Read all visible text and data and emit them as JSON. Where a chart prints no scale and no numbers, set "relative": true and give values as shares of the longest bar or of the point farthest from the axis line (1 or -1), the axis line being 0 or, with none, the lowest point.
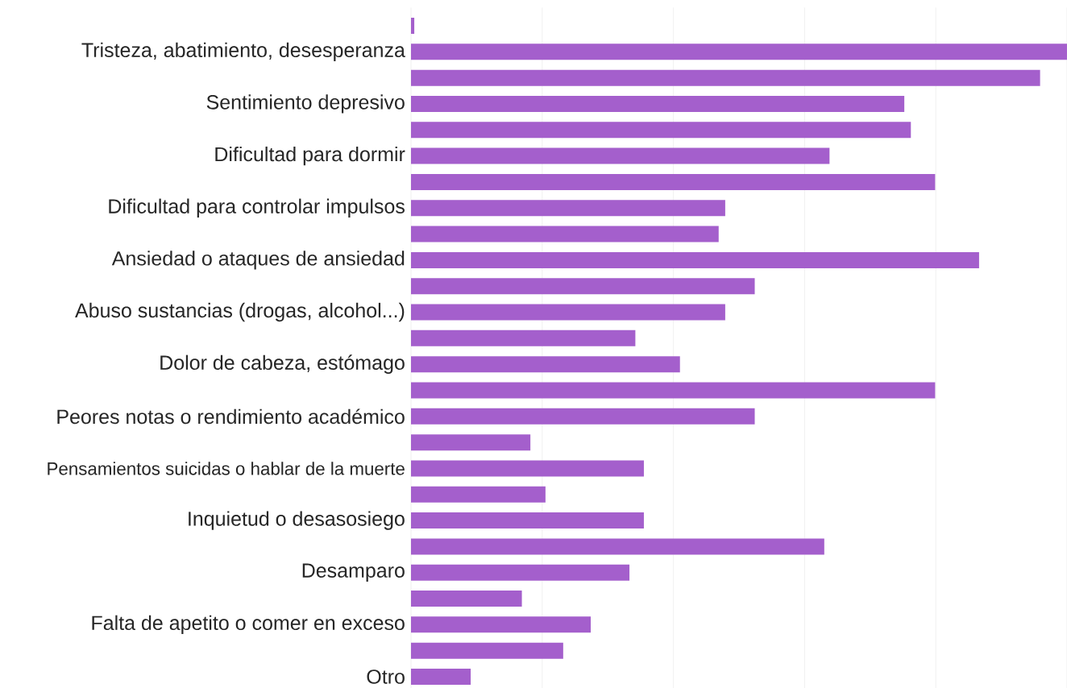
{
  "chart_data": {
    "type": "bar",
    "orientation": "horizontal",
    "relative": true,
    "grid": "x",
    "color": "#a45fcc",
    "categories": [
      null,
      "Tristeza, abatimiento, desesperanza",
      null,
      "Sentimiento depresivo",
      null,
      "Dificultad para dormir",
      null,
      "Dificultad para controlar impulsos",
      null,
      "Ansiedad o ataques de ansiedad",
      null,
      "Abuso sustancias (drogas, alcohol...)",
      null,
      "Dolor de cabeza, estómago",
      null,
      "Peores notas o rendimiento académico",
      null,
      "Pensamientos suicidas o hablar de la muerte",
      null,
      "Inquietud o desasosiego",
      null,
      "Desamparo",
      null,
      "Falta de apetito o comer en exceso",
      null,
      "Otro"
    ],
    "values": [
      0.005,
      1.0,
      0.959,
      0.752,
      0.762,
      0.638,
      0.799,
      0.479,
      0.469,
      0.866,
      0.524,
      0.479,
      0.342,
      0.41,
      0.799,
      0.524,
      0.182,
      0.355,
      0.205,
      0.355,
      0.63,
      0.333,
      0.169,
      0.274,
      0.232,
      0.091
    ]
  }
}
